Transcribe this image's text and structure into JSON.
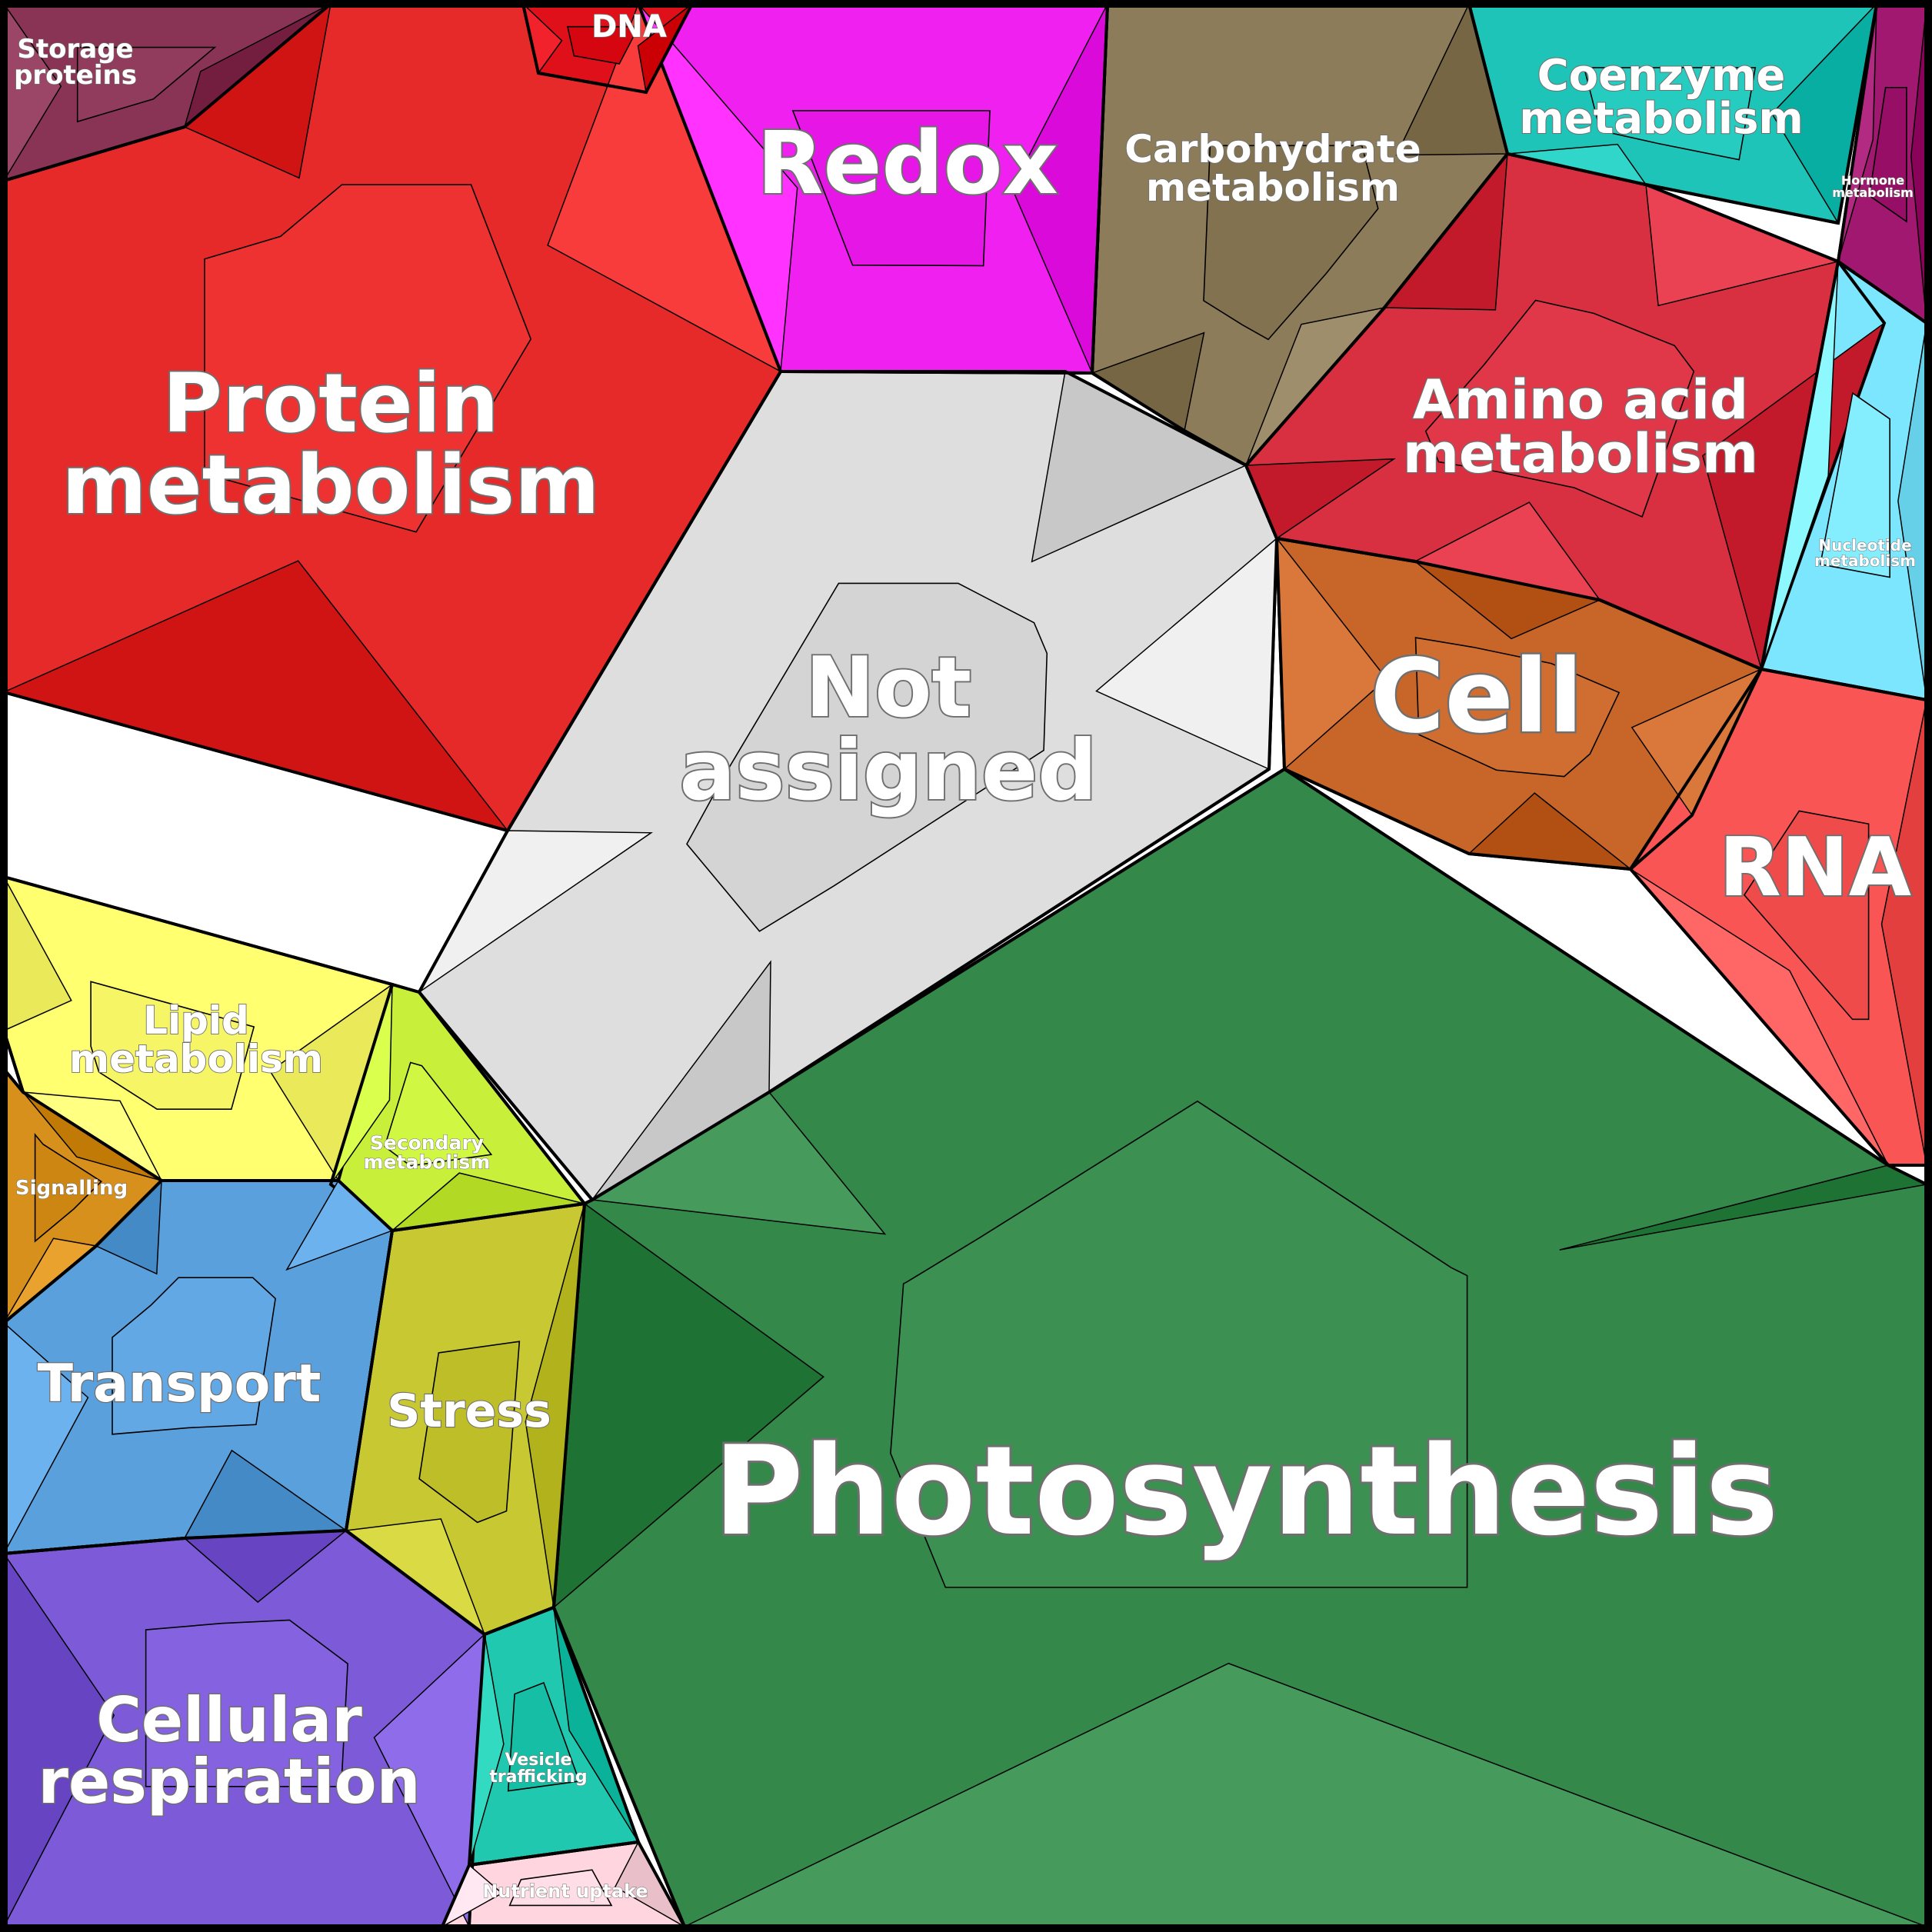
{
  "chart_data": {
    "type": "voronoi-treemap",
    "title": "",
    "categories": [
      {
        "label": "Photosynthesis",
        "color": "#33884a"
      },
      {
        "label": "Not assigned",
        "color": "#dedede"
      },
      {
        "label": "Protein metabolism",
        "color": "#e62a2a"
      },
      {
        "label": "Redox",
        "color": "#f020f0"
      },
      {
        "label": "Cell",
        "color": "#c8662a"
      },
      {
        "label": "RNA",
        "color": "#fa5555"
      },
      {
        "label": "Amino acid metabolism",
        "color": "#d83040"
      },
      {
        "label": "Carbohydrate metabolism",
        "color": "#8c7c5a"
      },
      {
        "label": "Coenzyme metabolism",
        "color": "#1fc4b8"
      },
      {
        "label": "Hormone metabolism",
        "color": "#a0186f"
      },
      {
        "label": "Nucleotide metabolism",
        "color": "#7ce6ff"
      },
      {
        "label": "DNA",
        "color": "#e0101a"
      },
      {
        "label": "Storage proteins",
        "color": "#8a3455"
      },
      {
        "label": "Lipid metabolism",
        "color": "#ffff70"
      },
      {
        "label": "Secondary metabolism",
        "color": "#c8f03a"
      },
      {
        "label": "Signalling",
        "color": "#d8901c"
      },
      {
        "label": "Transport",
        "color": "#5aa0dc"
      },
      {
        "label": "Stress",
        "color": "#c8c832"
      },
      {
        "label": "Cellular respiration",
        "color": "#7c5ad8"
      },
      {
        "label": "Vesicle trafficking",
        "color": "#20c8b0"
      },
      {
        "label": "Nutrient uptake",
        "color": "#ffd6e0"
      }
    ]
  }
}
